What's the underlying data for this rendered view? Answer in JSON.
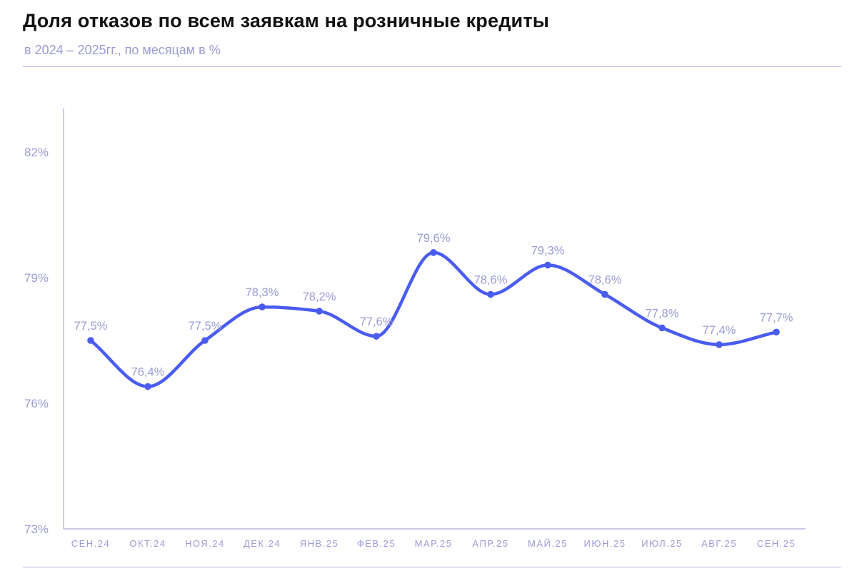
{
  "header": {
    "title": "Доля отказов по всем заявкам на розничные кредиты",
    "subtitle": "в 2024 – 2025гг., по месяцам в %"
  },
  "colors": {
    "line": "#4a5cf0",
    "text_muted": "#9b9bd6",
    "axis": "#b9b9e4",
    "title": "#111111"
  },
  "chart_data": {
    "type": "line",
    "title": "Доля отказов по всем заявкам на розничные кредиты",
    "subtitle": "в 2024 – 2025гг., по месяцам в %",
    "categories": [
      "СЕН.24",
      "ОКТ.24",
      "НОЯ.24",
      "ДЕК.24",
      "ЯНВ.25",
      "ФЕВ.25",
      "МАР.25",
      "АПР.25",
      "МАЙ.25",
      "ИЮН.25",
      "ИЮЛ.25",
      "АВГ.25",
      "СЕН.25"
    ],
    "series": [
      {
        "values": [
          77.5,
          76.4,
          77.5,
          78.3,
          78.2,
          77.6,
          79.6,
          78.6,
          79.3,
          78.6,
          77.8,
          77.4,
          77.7
        ],
        "labels": [
          "77,5%",
          "76,4%",
          "77,5%",
          "78,3%",
          "78,2%",
          "77,6%",
          "79,6%",
          "78,6%",
          "79,3%",
          "78,6%",
          "77,8%",
          "77,4%",
          "77,7%"
        ]
      }
    ],
    "y_ticks": [
      73,
      76,
      79,
      82
    ],
    "y_tick_labels": [
      "73%",
      "76%",
      "79%",
      "82%"
    ],
    "ylim": [
      73,
      83
    ],
    "xlabel": "",
    "ylabel": "",
    "grid": false,
    "legend": "none",
    "smooth": true,
    "markers": true
  }
}
